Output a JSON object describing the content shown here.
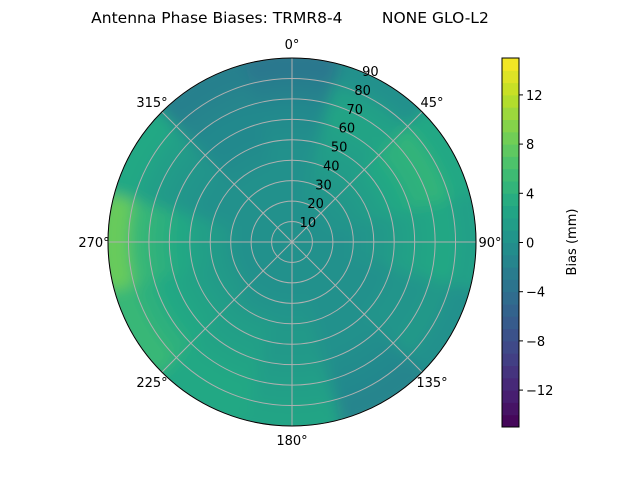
{
  "chart_data": {
    "type": "polar-contour",
    "title": "Antenna Phase Biases: TRMR8-4        NONE GLO-L2",
    "angle_tick_labels": [
      "0°",
      "45°",
      "90°",
      "135°",
      "180°",
      "225°",
      "270°",
      "315°"
    ],
    "radial_tick_labels": [
      "10",
      "20",
      "30",
      "40",
      "50",
      "60",
      "70",
      "80",
      "90"
    ],
    "radial_range": [
      0,
      90
    ],
    "angle_direction": "clockwise",
    "angle_zero": "top",
    "grid": true,
    "colormap": "viridis",
    "colorbar": {
      "label": "Bias (mm)",
      "range": [
        -15,
        15
      ],
      "ticks": [
        -12,
        -8,
        -4,
        0,
        4,
        8,
        12
      ],
      "tick_labels": [
        "−12",
        "−8",
        "−4",
        "0",
        "4",
        "8",
        "12"
      ],
      "placement": "right"
    },
    "azimuth_deg": [
      0,
      30,
      60,
      90,
      120,
      150,
      180,
      210,
      240,
      270,
      300,
      330
    ],
    "zenith_deg": [
      5,
      15,
      25,
      35,
      45,
      55,
      65,
      75,
      85
    ],
    "bias_mm": [
      [
        0,
        0,
        0,
        0,
        0,
        0,
        0,
        0,
        0,
        0,
        0,
        0
      ],
      [
        0,
        0,
        0,
        0,
        0,
        0,
        0,
        0,
        0,
        0,
        0,
        0
      ],
      [
        0,
        0.5,
        0.5,
        0,
        0,
        0,
        0,
        0,
        0,
        0,
        0,
        0
      ],
      [
        0,
        1,
        1,
        0.5,
        0,
        0,
        0.5,
        0.5,
        1,
        1,
        0,
        0
      ],
      [
        0,
        1.5,
        2,
        1,
        0,
        0,
        1,
        1.5,
        1.5,
        2,
        0,
        -0.5
      ],
      [
        -0.5,
        2,
        3,
        2,
        0.5,
        0,
        1,
        2,
        2.5,
        3,
        0.5,
        -1
      ],
      [
        -1,
        2.5,
        4,
        2.5,
        0.5,
        -0.5,
        1.5,
        2.5,
        3,
        4,
        1,
        -1
      ],
      [
        -2,
        2,
        4.5,
        3,
        1,
        -1,
        2,
        3,
        4,
        5,
        2,
        -1.5
      ],
      [
        -3,
        0,
        3,
        2,
        0,
        -1.5,
        2.5,
        3,
        5,
        8,
        3,
        -2
      ]
    ]
  }
}
